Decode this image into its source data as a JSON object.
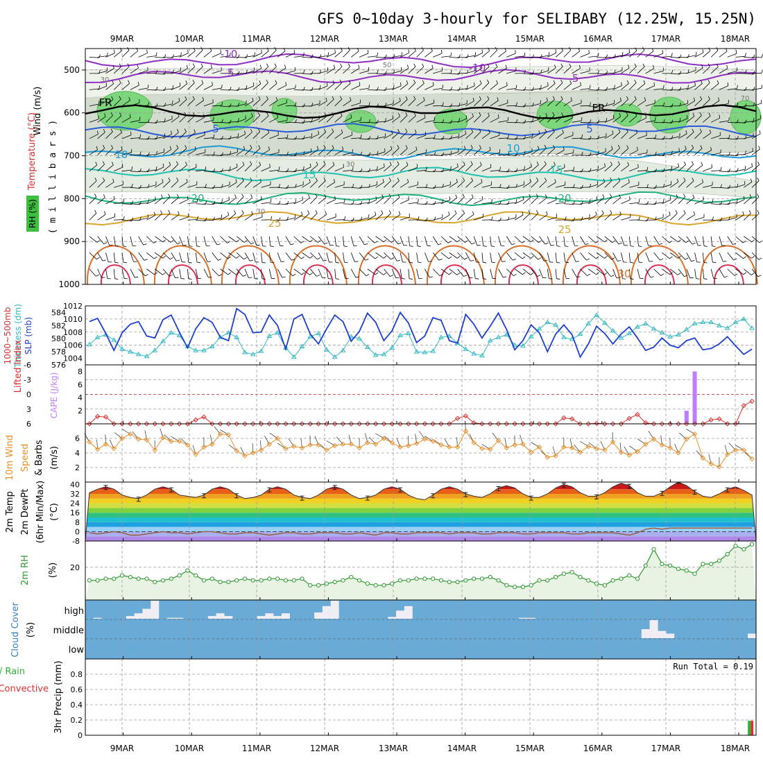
{
  "title": "GFS 0~10day 3-hourly for SELIBABY (12.25W, 15.25N)",
  "date_labels": [
    "9MAR",
    "10MAR",
    "11MAR",
    "12MAR",
    "13MAR",
    "14MAR",
    "15MAR",
    "16MAR",
    "17MAR",
    "18MAR"
  ],
  "colors": {
    "rh": "#7cd67c",
    "fr": "#000000",
    "temp_neg": "#8e2fc2",
    "temp_5": "#2a5bd8",
    "temp_10": "#1b9bd8",
    "temp_15": "#1fc2b0",
    "temp_20": "#1fb07a",
    "temp_25": "#d8a52a",
    "temp_30": "#d8702a",
    "slp": "#1c3fd0",
    "thickness": "#30b8c0",
    "lifted": "#d83030",
    "cape": "#c07cff",
    "wind10": "#e8902a",
    "dewpt": "#9a5a3a",
    "rh2m": "#2e9a2e",
    "cloud": "#6aaad6",
    "precip_total": "#2db82d",
    "precip_conv": "#e03030"
  },
  "panels": {
    "upper": {
      "ylabel_rh": "RH (%)",
      "ylabel_temp": "Temperature (°C)",
      "ylabel_wind": "Wind (m/s)",
      "ylabel_p": "( m i l l i b a r s )",
      "ticks": [
        "500",
        "600",
        "700",
        "800",
        "900",
        "1000"
      ],
      "contour_labels": [
        "-10",
        "-5",
        "FR",
        "5",
        "10",
        "15",
        "20",
        "25",
        "30",
        "30",
        "50",
        "30",
        "30",
        "70"
      ]
    },
    "slp": {
      "ylabel_thick": "Thickness (dm)",
      "ylabel_thick2": "1000~500mb",
      "ylabel_slp": "SLP (mb)",
      "left_ticks": [
        "584",
        "582",
        "580",
        "578",
        "576"
      ],
      "right_ticks": [
        "1012",
        "1010",
        "1008",
        "1006",
        "1004"
      ]
    },
    "cape": {
      "ylabel_li": "Lifted Index",
      "ylabel_cape": "CAPE (J/kg)",
      "left_ticks": [
        "-6",
        "-3",
        "0",
        "3",
        "6"
      ],
      "right_ticks": [
        "8",
        "6",
        "4",
        "2"
      ]
    },
    "wind10": {
      "ylabel1": "10m Wind",
      "ylabel2": "Speed",
      "ylabel3": "& Barbs",
      "unit": "(m/s)",
      "ticks": [
        "6",
        "4",
        "2"
      ]
    },
    "temp2m": {
      "ylabel1": "2m Temp",
      "ylabel2": "2m DewPt",
      "ylabel3": "(6hr Min/Max)",
      "unit": "(°C)",
      "ticks": [
        "40",
        "32",
        "24",
        "16",
        "8",
        "0",
        "-8"
      ]
    },
    "rh2m": {
      "ylabel": "2m RH",
      "unit": "(%)",
      "ticks": [
        "20"
      ]
    },
    "cloud": {
      "ylabel": "Cloud Cover",
      "unit": "(%)",
      "levels": [
        "high",
        "middle",
        "low"
      ]
    },
    "precip": {
      "ylabel1": "Total / Rain",
      "ylabel2": "Convective",
      "ylabel3": "3hr Precip (mm)",
      "ticks": [
        "0.8",
        "0.6",
        "0.4",
        "0.2",
        "0"
      ],
      "run_total": "Run Total = 0.19"
    }
  },
  "chart_data": [
    {
      "type": "line",
      "name": "Temperature isotherms (°C) vs pressure (mb)",
      "ylim": [
        450,
        1000
      ],
      "levels": [
        {
          "t": -10,
          "p": 478
        },
        {
          "t": -5,
          "p": 515
        },
        {
          "t": 0,
          "p": 598
        },
        {
          "t": 5,
          "p": 640
        },
        {
          "t": 10,
          "p": 693
        },
        {
          "t": 15,
          "p": 743
        },
        {
          "t": 20,
          "p": 800
        },
        {
          "t": 25,
          "p": 845
        }
      ]
    },
    {
      "type": "line",
      "name": "SLP (mb)",
      "ylim": [
        1003,
        1012
      ],
      "values": [
        1009.6,
        1010.1,
        1007.8,
        1005.2,
        1007.9,
        1009.2,
        1009.6,
        1007.4,
        1007.1,
        1009.9,
        1010.6,
        1008.0,
        1005.6,
        1008.5,
        1010.2,
        1009.5,
        1007.2,
        1006.7,
        1011.6,
        1010.7,
        1007.9,
        1008.0,
        1010.6,
        1009.0,
        1005.4,
        1010.0,
        1010.7,
        1007.7,
        1006.2,
        1008.5,
        1010.6,
        1009.6,
        1006.6,
        1008.1,
        1010.9,
        1009.5,
        1006.7,
        1008.2,
        1011.0,
        1009.4,
        1006.4,
        1007.4,
        1010.2,
        1009.8,
        1006.7,
        1006.3,
        1010.7,
        1009.2,
        1007.1,
        1008.9,
        1010.9,
        1008.4,
        1005.3,
        1006.7,
        1009.1,
        1007.9,
        1005.0,
        1007.7,
        1009.1,
        1007.6,
        1004.2,
        1006.2,
        1008.9,
        1007.8,
        1006.2,
        1007.7,
        1008.8,
        1007.1,
        1005.2,
        1005.7,
        1007.1,
        1006.0,
        1005.6,
        1006.7,
        1007.1,
        1005.3,
        1005.5,
        1006.2,
        1007.3,
        1005.9,
        1004.6,
        1005.4
      ]
    },
    {
      "type": "line",
      "name": "Thickness 1000~500mb (dm)",
      "ylim": [
        576,
        585
      ],
      "values": [
        579.1,
        580.2,
        580.6,
        579.8,
        578.4,
        578.0,
        577.6,
        577.3,
        578.2,
        579.6,
        580.9,
        580.5,
        578.8,
        578.2,
        578.2,
        578.8,
        580.2,
        580.9,
        580.2,
        577.9,
        577.6,
        578.1,
        580.4,
        580.9,
        578.6,
        577.2,
        578.8,
        580.3,
        580.8,
        578.3,
        577.2,
        578.2,
        580.3,
        580.0,
        578.7,
        577.5,
        577.6,
        578.6,
        580.5,
        580.8,
        578.0,
        577.9,
        578.1,
        580.2,
        580.4,
        579.3,
        578.4,
        577.7,
        577.4,
        579.7,
        580.2,
        580.6,
        579.0,
        578.9,
        580.3,
        581.5,
        582.5,
        582.1,
        580.2,
        579.9,
        580.7,
        582.3,
        583.6,
        582.4,
        581.2,
        580.1,
        580.8,
        581.8,
        582.3,
        581.5,
        580.9,
        580.3,
        580.6,
        581.4,
        582.3,
        582.5,
        582.5,
        582.0,
        581.6,
        582.5,
        583.0,
        581.6
      ]
    },
    {
      "type": "line",
      "name": "Lifted Index",
      "ylim": [
        6,
        -6
      ],
      "values": [
        6,
        4.5,
        4.6,
        6,
        6,
        6,
        6,
        6,
        6,
        6,
        6,
        6,
        6,
        5.2,
        4.6,
        6,
        6,
        6,
        6,
        6,
        6,
        6,
        6,
        6,
        6,
        6,
        6,
        6,
        6,
        6,
        6,
        6,
        6,
        6,
        6,
        6,
        6,
        6,
        6,
        6,
        6,
        6,
        6,
        6,
        6,
        4.9,
        4.4,
        5.8,
        6,
        6,
        6,
        6,
        6,
        6,
        6,
        6,
        6,
        6,
        4.8,
        5.0,
        6,
        6,
        5.9,
        6,
        6,
        6,
        4.9,
        4.1,
        5.8,
        6,
        6,
        6,
        6,
        6,
        6,
        6,
        5.2,
        5.0,
        6,
        6,
        2.3,
        1.4
      ]
    },
    {
      "type": "bar",
      "name": "CAPE (J/kg)",
      "ylim": [
        0,
        9
      ],
      "x": [
        "17MAR 03",
        "17MAR 06"
      ],
      "values": [
        2,
        8
      ]
    },
    {
      "type": "line",
      "name": "10m Wind Speed (m/s)",
      "ylim": [
        0,
        8
      ],
      "values": [
        5.5,
        4.5,
        5.2,
        4.6,
        6.0,
        6.6,
        5.9,
        5.8,
        4.4,
        6.1,
        5.6,
        5.6,
        5.1,
        3.8,
        4.8,
        5.2,
        6.6,
        6.5,
        4.3,
        3.6,
        4.0,
        4.4,
        5.2,
        6.0,
        4.6,
        4.9,
        4.7,
        5.1,
        5.1,
        4.4,
        5.0,
        5.2,
        5.2,
        4.7,
        5.4,
        5.2,
        6.0,
        5.4,
        4.8,
        5.0,
        5.3,
        5.9,
        5.6,
        5.1,
        4.8,
        4.8,
        7.0,
        5.4,
        4.6,
        4.5,
        5.7,
        4.7,
        5.1,
        5.2,
        4.1,
        4.8,
        3.4,
        3.6,
        4.8,
        4.7,
        4.1,
        4.9,
        4.6,
        4.4,
        5.5,
        4.1,
        3.7,
        4.2,
        5.2,
        5.9,
        5.1,
        4.7,
        4.0,
        5.9,
        6.6,
        3.3,
        2.5,
        2.1,
        3.8,
        4.4,
        4.4,
        3.2
      ]
    },
    {
      "type": "area",
      "name": "2m Temp (°C)",
      "ylim": [
        -8,
        42
      ],
      "values": [
        33,
        36,
        38,
        36,
        31,
        29,
        28,
        31,
        36,
        38,
        36,
        31,
        30,
        29,
        31,
        36,
        38,
        36,
        31,
        28,
        29,
        31,
        36,
        38,
        36,
        31,
        29,
        28,
        31,
        36,
        38,
        36,
        31,
        28,
        29,
        31,
        36,
        38,
        36,
        31,
        28,
        27,
        31,
        36,
        38,
        36,
        32,
        30,
        29,
        32,
        37,
        39,
        37,
        32,
        29,
        29,
        32,
        37,
        40,
        38,
        33,
        30,
        30,
        33,
        38,
        41,
        39,
        33,
        30,
        30,
        33,
        38,
        42,
        39,
        34,
        30,
        29,
        32,
        36,
        38,
        35,
        31
      ]
    },
    {
      "type": "line",
      "name": "2m DewPt (°C)",
      "ylim": [
        -8,
        42
      ],
      "values": [
        -1,
        -2,
        -1,
        0,
        -1,
        -3,
        -3,
        -2,
        -1,
        0,
        -1,
        -1,
        -2,
        -1,
        0,
        0,
        -1,
        -2,
        -2,
        -1,
        -1,
        -2,
        -3,
        -2,
        -1,
        -1,
        -2,
        -2,
        -1,
        -1,
        -1,
        -2,
        -2,
        -1,
        -2,
        -3,
        -1,
        -1,
        -2,
        -2,
        -1,
        -1,
        -1,
        -1,
        -2,
        -1,
        -1,
        -1,
        -2,
        -2,
        -1,
        -1,
        -1,
        -2,
        -2,
        -1,
        -1,
        -1,
        -1,
        -2,
        -2,
        -1,
        -1,
        -1,
        -1,
        -2,
        -3,
        -1,
        2,
        3,
        2,
        3,
        3,
        3,
        3,
        3,
        3,
        3,
        3,
        3,
        3,
        3
      ]
    },
    {
      "type": "area",
      "name": "2m RH (%)",
      "ylim": [
        0,
        36
      ],
      "values": [
        12,
        12,
        13,
        13,
        15,
        14,
        13,
        13,
        11,
        12,
        13,
        15,
        18,
        15,
        12,
        13,
        11,
        11,
        12,
        13,
        12,
        12,
        13,
        13,
        12,
        12,
        13,
        9,
        9,
        10,
        11,
        12,
        14,
        12,
        10,
        9,
        9,
        10,
        12,
        12,
        13,
        13,
        13,
        12,
        11,
        11,
        12,
        13,
        13,
        14,
        12,
        9,
        8,
        8,
        9,
        12,
        12,
        14,
        16,
        17,
        14,
        12,
        10,
        9,
        12,
        13,
        15,
        13,
        21,
        31,
        22,
        21,
        19,
        18,
        16,
        22,
        22,
        24,
        28,
        33,
        31,
        34
      ]
    },
    {
      "type": "bar",
      "name": "Cloud Cover (%)",
      "levels": [
        "high",
        "middle",
        "low"
      ],
      "high": [
        0,
        5,
        0,
        0,
        0,
        15,
        30,
        55,
        100,
        0,
        5,
        5,
        0,
        0,
        0,
        15,
        30,
        15,
        0,
        0,
        0,
        15,
        30,
        15,
        30,
        0,
        0,
        0,
        35,
        70,
        100,
        0,
        0,
        0,
        0,
        0,
        0,
        10,
        45,
        70,
        0,
        0,
        0,
        0,
        0,
        0,
        0,
        0,
        0,
        0,
        0,
        0,
        0,
        5,
        5,
        0,
        0,
        0,
        0,
        0,
        0,
        0,
        0,
        0,
        0,
        0,
        0,
        0,
        0,
        0,
        0,
        0,
        0,
        0,
        0,
        0,
        0,
        0,
        0,
        0,
        0,
        0
      ],
      "middle": [
        0,
        0,
        0,
        0,
        0,
        0,
        0,
        0,
        0,
        0,
        0,
        0,
        0,
        0,
        0,
        0,
        0,
        0,
        0,
        0,
        0,
        0,
        0,
        0,
        0,
        0,
        0,
        0,
        0,
        0,
        0,
        0,
        0,
        0,
        0,
        0,
        0,
        0,
        0,
        0,
        0,
        0,
        0,
        0,
        0,
        0,
        0,
        0,
        0,
        0,
        0,
        0,
        0,
        0,
        0,
        0,
        0,
        0,
        0,
        0,
        0,
        0,
        0,
        0,
        0,
        0,
        0,
        0,
        50,
        100,
        40,
        25,
        0,
        0,
        0,
        0,
        0,
        0,
        0,
        0,
        0,
        25
      ]
    },
    {
      "type": "bar",
      "name": "3hr Precip (mm)",
      "ylim": [
        0,
        1.0
      ],
      "x": [
        "18MAR 15"
      ],
      "total": [
        0.19
      ],
      "convective": [
        0.19
      ],
      "run_total": 0.19
    }
  ]
}
